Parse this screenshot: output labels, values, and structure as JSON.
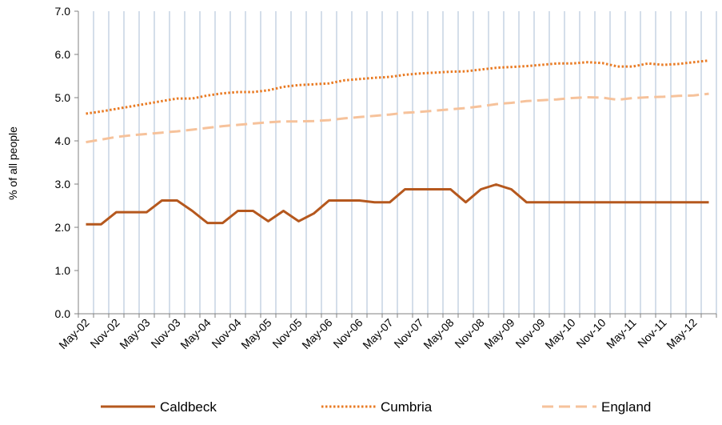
{
  "chart_data": {
    "type": "line",
    "title": "",
    "ylabel": "% of all people",
    "xlabel": "",
    "ylim": [
      0,
      7
    ],
    "yticks": [
      "0.0",
      "1.0",
      "2.0",
      "3.0",
      "4.0",
      "5.0",
      "6.0",
      "7.0"
    ],
    "grid": "vertical",
    "legend_position": "bottom",
    "x_tick_labels": [
      "May-02",
      "Nov-02",
      "May-03",
      "Nov-03",
      "May-04",
      "Nov-04",
      "May-05",
      "Nov-05",
      "May-06",
      "Nov-06",
      "May-07",
      "Nov-07",
      "May-08",
      "Nov-08",
      "May-09",
      "Nov-09",
      "May-10",
      "Nov-10",
      "May-11",
      "Nov-11",
      "May-12"
    ],
    "x": [
      "May-02",
      "Aug-02",
      "Nov-02",
      "Feb-03",
      "May-03",
      "Aug-03",
      "Nov-03",
      "Feb-04",
      "May-04",
      "Aug-04",
      "Nov-04",
      "Feb-05",
      "May-05",
      "Aug-05",
      "Nov-05",
      "Feb-06",
      "May-06",
      "Aug-06",
      "Nov-06",
      "Feb-07",
      "May-07",
      "Aug-07",
      "Nov-07",
      "Feb-08",
      "May-08",
      "Aug-08",
      "Nov-08",
      "Feb-09",
      "May-09",
      "Aug-09",
      "Nov-09",
      "Feb-10",
      "May-10",
      "Aug-10",
      "Nov-10",
      "Feb-11",
      "May-11",
      "Aug-11",
      "Nov-11",
      "Feb-12",
      "May-12",
      "Aug-12"
    ],
    "series": [
      {
        "name": "Caldbeck",
        "color": "#B5581E",
        "dash": "solid",
        "values": [
          2.07,
          2.07,
          2.35,
          2.35,
          2.35,
          2.62,
          2.62,
          2.38,
          2.1,
          2.1,
          2.38,
          2.38,
          2.14,
          2.38,
          2.14,
          2.32,
          2.62,
          2.62,
          2.62,
          2.58,
          2.58,
          2.88,
          2.88,
          2.88,
          2.88,
          2.58,
          2.88,
          2.99,
          2.88,
          2.58,
          2.58,
          2.58,
          2.58,
          2.58,
          2.58,
          2.58,
          2.58,
          2.58,
          2.58,
          2.58,
          2.58,
          2.58
        ]
      },
      {
        "name": "Cumbria",
        "color": "#E97B24",
        "dash": "dotted",
        "values": [
          4.63,
          4.68,
          4.74,
          4.8,
          4.86,
          4.92,
          4.98,
          4.98,
          5.05,
          5.1,
          5.13,
          5.13,
          5.17,
          5.25,
          5.29,
          5.31,
          5.33,
          5.4,
          5.43,
          5.46,
          5.48,
          5.53,
          5.56,
          5.58,
          5.6,
          5.61,
          5.65,
          5.69,
          5.71,
          5.73,
          5.76,
          5.79,
          5.79,
          5.82,
          5.8,
          5.72,
          5.72,
          5.79,
          5.76,
          5.78,
          5.82,
          5.86
        ]
      },
      {
        "name": "England",
        "color": "#F6C29B",
        "dash": "dashed",
        "values": [
          3.97,
          4.03,
          4.09,
          4.13,
          4.16,
          4.19,
          4.22,
          4.26,
          4.3,
          4.34,
          4.37,
          4.4,
          4.43,
          4.45,
          4.45,
          4.46,
          4.48,
          4.52,
          4.55,
          4.58,
          4.61,
          4.65,
          4.67,
          4.7,
          4.73,
          4.76,
          4.8,
          4.85,
          4.88,
          4.92,
          4.94,
          4.96,
          4.99,
          5.01,
          5.0,
          4.95,
          4.99,
          5.01,
          5.02,
          5.04,
          5.05,
          5.09
        ]
      }
    ]
  }
}
